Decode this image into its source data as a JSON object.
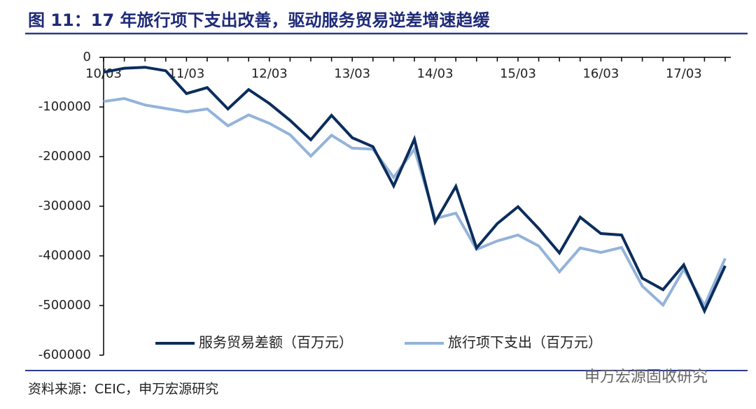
{
  "title": "图 11：17 年旅行项下支出改善，驱动服务贸易逆差增速趋缓",
  "source": "资料来源：CEIC，申万宏源研究",
  "watermark": "申万宏源固收研究",
  "chart_data": {
    "type": "line",
    "categories": [
      "10/03",
      null,
      null,
      null,
      "11/03",
      null,
      null,
      null,
      "12/03",
      null,
      null,
      null,
      "13/03",
      null,
      null,
      null,
      "14/03",
      null,
      null,
      null,
      "15/03",
      null,
      null,
      null,
      "16/03",
      null,
      null,
      null,
      "17/03",
      null,
      null
    ],
    "series": [
      {
        "name": "服务贸易差额（百万元）",
        "color": "#0b2d5c",
        "values": [
          -30000,
          -22000,
          -20000,
          -27000,
          -73000,
          -61000,
          -104000,
          -65000,
          -93000,
          -127000,
          -166000,
          -117000,
          -162000,
          -180000,
          -259000,
          -165000,
          -332000,
          -260000,
          -384000,
          -335000,
          -301000,
          -345000,
          -394000,
          -322000,
          -355000,
          -358000,
          -445000,
          -468000,
          -418000,
          -511000,
          -420000
        ]
      },
      {
        "name": "旅行项下支出（百万元）",
        "color": "#93b3da",
        "values": [
          -89000,
          -83000,
          -96000,
          -103000,
          -110000,
          -104000,
          -138000,
          -116000,
          -133000,
          -156000,
          -199000,
          -157000,
          -183000,
          -185000,
          -242000,
          -185000,
          -325000,
          -314000,
          -387000,
          -370000,
          -358000,
          -380000,
          -432000,
          -384000,
          -393000,
          -383000,
          -461000,
          -499000,
          -427000,
          -500000,
          -405000
        ]
      }
    ],
    "ylim": [
      -600000,
      0
    ],
    "yticks": [
      -600000,
      -500000,
      -400000,
      -300000,
      -200000,
      -100000,
      0
    ],
    "legend": "bottom"
  }
}
